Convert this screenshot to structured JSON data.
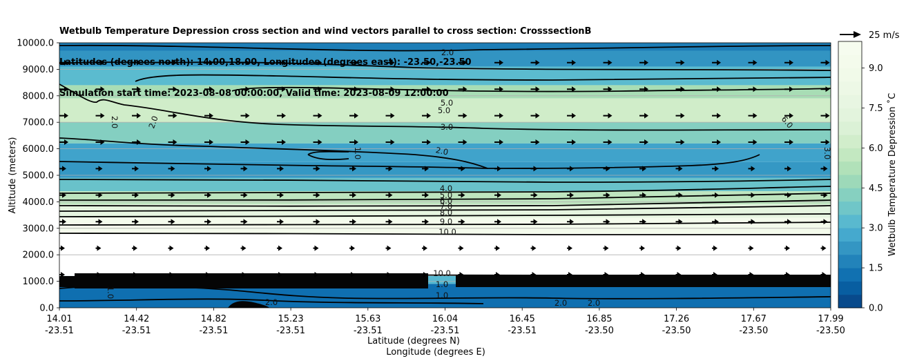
{
  "title": {
    "line1": "Wetbulb Temperature Depression cross section and wind vectors parallel to cross section: CrosssectionB",
    "line2": "Latitudes (degrees north): 14.00,18.00, Longitudes (degrees east): -23.50,-23.50",
    "line3": "Simulation start time: 2023-08-08 00:00:00, Valid time: 2023-08-09 12:00:00"
  },
  "chart_data": {
    "type": "filled-contour cross section with wind vectors",
    "ylabel": "Altitude (meters)",
    "xlabel_lat": "Latitude (degrees N)",
    "xlabel_lon": "Longitude (degrees E)",
    "ylim": [
      0,
      10000
    ],
    "y_ticks": [
      "0.0",
      "1000.0",
      "2000.0",
      "3000.0",
      "4000.0",
      "5000.0",
      "6000.0",
      "7000.0",
      "8000.0",
      "9000.0",
      "10000.0"
    ],
    "x_ticks": [
      {
        "lat": "14.01",
        "lon": "-23.51"
      },
      {
        "lat": "14.42",
        "lon": "-23.51"
      },
      {
        "lat": "14.82",
        "lon": "-23.51"
      },
      {
        "lat": "15.23",
        "lon": "-23.51"
      },
      {
        "lat": "15.63",
        "lon": "-23.51"
      },
      {
        "lat": "16.04",
        "lon": "-23.51"
      },
      {
        "lat": "16.45",
        "lon": "-23.51"
      },
      {
        "lat": "16.85",
        "lon": "-23.50"
      },
      {
        "lat": "17.26",
        "lon": "-23.50"
      },
      {
        "lat": "17.67",
        "lon": "-23.50"
      },
      {
        "lat": "17.99",
        "lon": "-23.50"
      }
    ],
    "colorbar": {
      "label": "Wetbulb Temperature Depression ˚C",
      "range": [
        0,
        10
      ],
      "ticks": [
        "0.0",
        "1.5",
        "3.0",
        "4.5",
        "6.0",
        "7.5",
        "9.0"
      ]
    },
    "quiver_key": "25 m/s",
    "contour_labels": [
      "2.0",
      "5.0",
      "5.0",
      "3.0",
      "2.0",
      "1.0",
      "2.0",
      "2.0",
      "6.0",
      "3.0",
      "4.0",
      "5.0",
      "6.0",
      "7.0",
      "8.0",
      "9.0",
      "10.0",
      "10.0",
      "1.0",
      "1.0",
      "2.0",
      "2.0",
      "2.0",
      "1.0"
    ],
    "layers": [
      {
        "alt": [
          9700,
          10000
        ],
        "value": 1.6
      },
      {
        "alt": [
          9100,
          9700
        ],
        "value": 2.2
      },
      {
        "alt": [
          8400,
          9100
        ],
        "value": 3.3
      },
      {
        "alt": [
          7900,
          8400
        ],
        "value": 5.0
      },
      {
        "alt": [
          7000,
          7900
        ],
        "value": 6.2
      },
      {
        "alt": [
          6200,
          7000
        ],
        "value": 4.2
      },
      {
        "alt": [
          5500,
          6200
        ],
        "value": 2.6
      },
      {
        "alt": [
          4900,
          5500
        ],
        "value": 2.3
      },
      {
        "alt": [
          4400,
          4900
        ],
        "value": 3.6
      },
      {
        "alt": [
          3900,
          4400
        ],
        "value": 5.6
      },
      {
        "alt": [
          3400,
          3900
        ],
        "value": 7.6
      },
      {
        "alt": [
          2800,
          3400
        ],
        "value": 9.3
      },
      {
        "alt": [
          1200,
          2800
        ],
        "value": 10.5
      },
      {
        "alt": [
          900,
          1200
        ],
        "value": 3.2
      },
      {
        "alt": [
          0,
          900
        ],
        "value": 1.2
      }
    ]
  }
}
